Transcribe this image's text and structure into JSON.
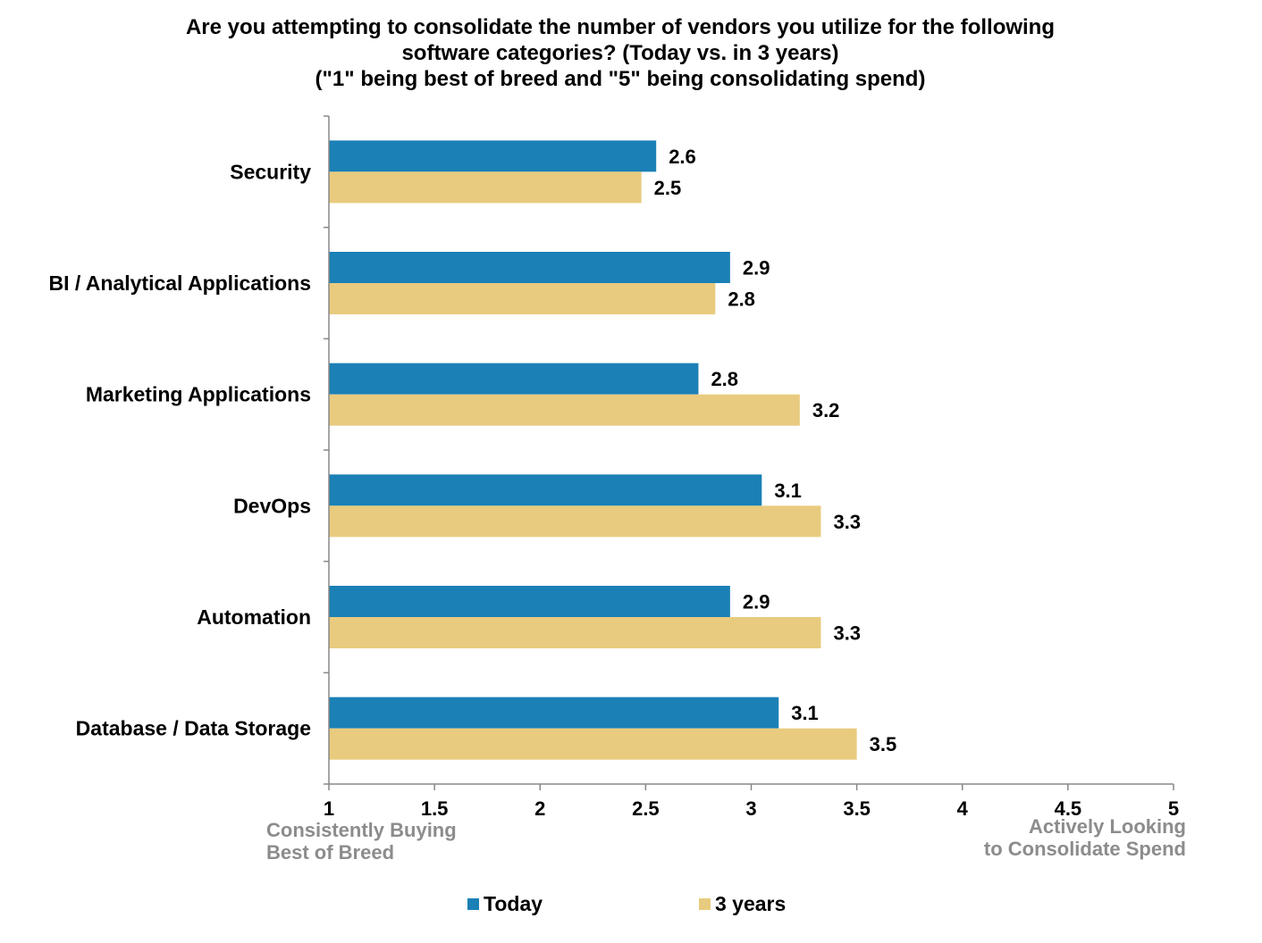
{
  "title_lines": [
    "Are you attempting to consolidate the number of vendors you utilize for the following",
    "software categories? (Today vs. in 3 years)",
    "(\"1\" being best of breed and \"5\" being consolidating spend)"
  ],
  "anchors": {
    "left_lines": [
      "Consistently Buying",
      "Best of Breed"
    ],
    "right_lines": [
      "Actively Looking",
      "to Consolidate Spend"
    ],
    "color": "#8c8c8c"
  },
  "colors": {
    "today": "#1a80b6",
    "three_years": "#e8cb7e",
    "axis": "#888888"
  },
  "chart_data": {
    "type": "bar",
    "orientation": "horizontal",
    "categories": [
      "Security",
      "BI / Analytical Applications",
      "Marketing Applications",
      "DevOps",
      "Automation",
      "Database / Data Storage"
    ],
    "series": [
      {
        "name": "Today",
        "values": [
          2.6,
          2.9,
          2.8,
          3.1,
          2.9,
          3.1
        ],
        "bar_values": [
          2.55,
          2.9,
          2.75,
          3.05,
          2.9,
          3.13
        ]
      },
      {
        "name": "3 years",
        "values": [
          2.5,
          2.8,
          3.2,
          3.3,
          3.3,
          3.5
        ],
        "bar_values": [
          2.48,
          2.83,
          3.23,
          3.33,
          3.33,
          3.5
        ]
      }
    ],
    "xlim": [
      1,
      5
    ],
    "xticks": [
      "1",
      "1.5",
      "2",
      "2.5",
      "3",
      "3.5",
      "4",
      "4.5",
      "5"
    ],
    "grid": false,
    "legend_position": "bottom"
  }
}
